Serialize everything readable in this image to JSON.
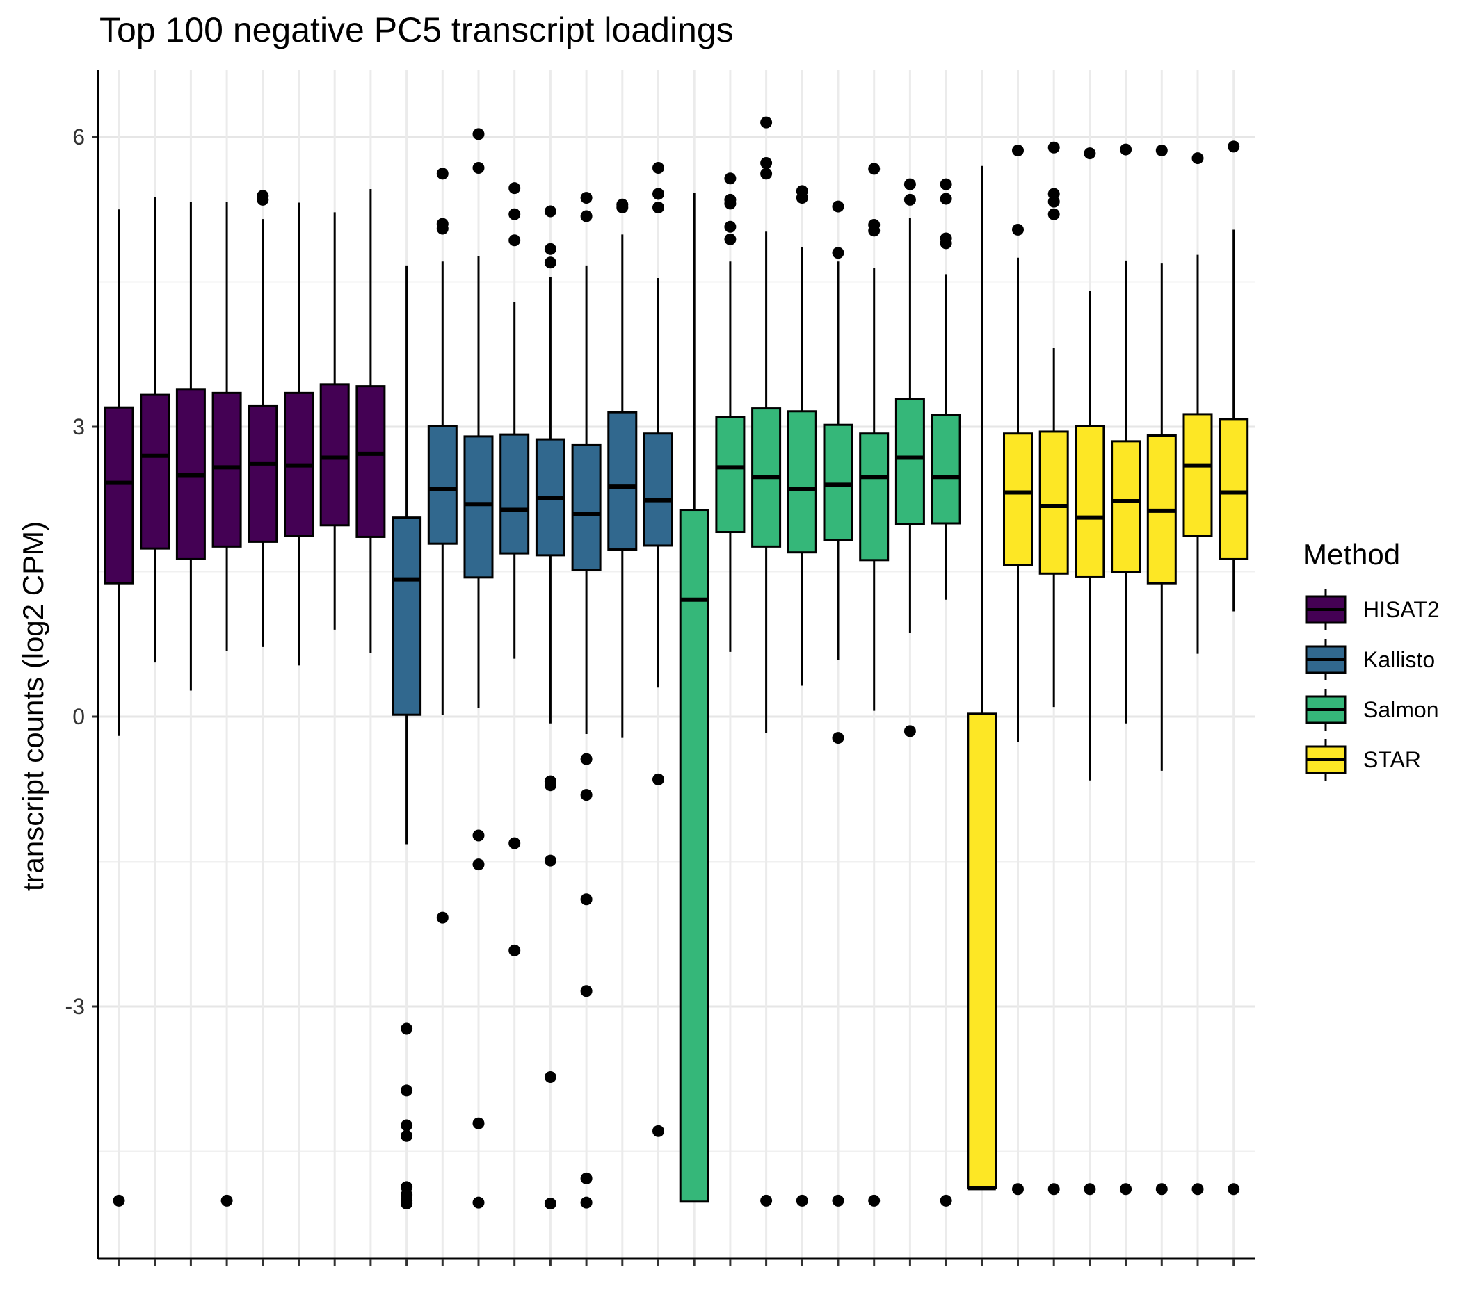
{
  "chart_data": {
    "type": "boxplot",
    "title": "Top 100 negative PC5 transcript loadings",
    "xlabel": "",
    "ylabel": "transcript counts (log2 CPM)",
    "ylim": [
      -5.6,
      6.8
    ],
    "yticks": [
      -3,
      0,
      3,
      6
    ],
    "grid": true,
    "legend": {
      "title": "Method",
      "position": "right",
      "entries": [
        {
          "name": "HISAT2",
          "color": "#440154"
        },
        {
          "name": "Kallisto",
          "color": "#31688E"
        },
        {
          "name": "Salmon",
          "color": "#35B779"
        },
        {
          "name": "STAR",
          "color": "#FDE725"
        }
      ]
    },
    "boxes": [
      {
        "method": "HISAT2",
        "q1": 1.38,
        "median": 2.42,
        "q3": 3.2,
        "whisker_low": -0.2,
        "whisker_high": 5.25,
        "outliers": [
          -5.01
        ]
      },
      {
        "method": "HISAT2",
        "q1": 1.74,
        "median": 2.7,
        "q3": 3.33,
        "whisker_low": 0.56,
        "whisker_high": 5.38,
        "outliers": []
      },
      {
        "method": "HISAT2",
        "q1": 1.63,
        "median": 2.5,
        "q3": 3.39,
        "whisker_low": 0.27,
        "whisker_high": 5.33,
        "outliers": []
      },
      {
        "method": "HISAT2",
        "q1": 1.76,
        "median": 2.58,
        "q3": 3.35,
        "whisker_low": 0.68,
        "whisker_high": 5.33,
        "outliers": [
          -5.01
        ]
      },
      {
        "method": "HISAT2",
        "q1": 1.81,
        "median": 2.62,
        "q3": 3.22,
        "whisker_low": 0.72,
        "whisker_high": 5.15,
        "outliers": [
          5.35,
          5.39
        ]
      },
      {
        "method": "HISAT2",
        "q1": 1.87,
        "median": 2.6,
        "q3": 3.35,
        "whisker_low": 0.53,
        "whisker_high": 5.32,
        "outliers": []
      },
      {
        "method": "HISAT2",
        "q1": 1.98,
        "median": 2.68,
        "q3": 3.44,
        "whisker_low": 0.9,
        "whisker_high": 5.22,
        "outliers": []
      },
      {
        "method": "HISAT2",
        "q1": 1.86,
        "median": 2.72,
        "q3": 3.42,
        "whisker_low": 0.66,
        "whisker_high": 5.46,
        "outliers": []
      },
      {
        "method": "Kallisto",
        "q1": 0.02,
        "median": 1.42,
        "q3": 2.06,
        "whisker_low": -1.32,
        "whisker_high": 4.67,
        "outliers": [
          -3.23,
          -3.87,
          -4.23,
          -4.34,
          -4.87,
          -4.95,
          -5.01,
          -5.04
        ]
      },
      {
        "method": "Kallisto",
        "q1": 1.79,
        "median": 2.36,
        "q3": 3.01,
        "whisker_low": 0.02,
        "whisker_high": 4.71,
        "outliers": [
          5.62,
          5.1,
          5.05,
          -2.08
        ]
      },
      {
        "method": "Kallisto",
        "q1": 1.44,
        "median": 2.2,
        "q3": 2.9,
        "whisker_low": 0.09,
        "whisker_high": 4.77,
        "outliers": [
          6.03,
          5.68,
          -1.23,
          -1.53,
          -4.21,
          -5.03
        ]
      },
      {
        "method": "Kallisto",
        "q1": 1.69,
        "median": 2.14,
        "q3": 2.92,
        "whisker_low": 0.6,
        "whisker_high": 4.29,
        "outliers": [
          5.47,
          5.2,
          4.93,
          -1.31,
          -2.42
        ]
      },
      {
        "method": "Kallisto",
        "q1": 1.67,
        "median": 2.26,
        "q3": 2.87,
        "whisker_low": -0.07,
        "whisker_high": 4.55,
        "outliers": [
          5.23,
          4.84,
          4.7,
          -0.67,
          -0.71,
          -1.49,
          -3.73,
          -5.04
        ]
      },
      {
        "method": "Kallisto",
        "q1": 1.52,
        "median": 2.1,
        "q3": 2.81,
        "whisker_low": -0.18,
        "whisker_high": 4.67,
        "outliers": [
          5.37,
          5.18,
          -0.44,
          -0.81,
          -1.89,
          -2.84,
          -4.78,
          -5.03
        ]
      },
      {
        "method": "Kallisto",
        "q1": 1.73,
        "median": 2.38,
        "q3": 3.15,
        "whisker_low": -0.22,
        "whisker_high": 4.99,
        "outliers": [
          5.3,
          5.27
        ]
      },
      {
        "method": "Kallisto",
        "q1": 1.77,
        "median": 2.24,
        "q3": 2.93,
        "whisker_low": 0.3,
        "whisker_high": 4.54,
        "outliers": [
          5.68,
          5.41,
          5.27,
          -0.65,
          -4.29
        ]
      },
      {
        "method": "Salmon",
        "q1": -5.02,
        "median": 1.21,
        "q3": 2.14,
        "whisker_low": -5.02,
        "whisker_high": 5.42,
        "outliers": []
      },
      {
        "method": "Salmon",
        "q1": 1.91,
        "median": 2.58,
        "q3": 3.1,
        "whisker_low": 0.67,
        "whisker_high": 4.71,
        "outliers": [
          5.57,
          5.35,
          5.31,
          5.07,
          4.94
        ]
      },
      {
        "method": "Salmon",
        "q1": 1.76,
        "median": 2.48,
        "q3": 3.19,
        "whisker_low": -0.17,
        "whisker_high": 5.02,
        "outliers": [
          6.15,
          5.73,
          5.62,
          -5.01
        ]
      },
      {
        "method": "Salmon",
        "q1": 1.7,
        "median": 2.36,
        "q3": 3.16,
        "whisker_low": 0.32,
        "whisker_high": 4.86,
        "outliers": [
          5.44,
          5.37,
          -5.01
        ]
      },
      {
        "method": "Salmon",
        "q1": 1.83,
        "median": 2.4,
        "q3": 3.02,
        "whisker_low": 0.59,
        "whisker_high": 4.71,
        "outliers": [
          5.28,
          4.8,
          -0.22,
          -5.01
        ]
      },
      {
        "method": "Salmon",
        "q1": 1.62,
        "median": 2.48,
        "q3": 2.93,
        "whisker_low": 0.06,
        "whisker_high": 4.64,
        "outliers": [
          5.67,
          5.09,
          5.03,
          -5.01
        ]
      },
      {
        "method": "Salmon",
        "q1": 1.99,
        "median": 2.68,
        "q3": 3.29,
        "whisker_low": 0.87,
        "whisker_high": 5.16,
        "outliers": [
          5.51,
          5.35,
          -0.15
        ]
      },
      {
        "method": "Salmon",
        "q1": 2.0,
        "median": 2.48,
        "q3": 3.12,
        "whisker_low": 1.21,
        "whisker_high": 4.58,
        "outliers": [
          5.51,
          5.36,
          4.95,
          4.9,
          -5.01
        ]
      },
      {
        "method": "STAR",
        "q1": -4.88,
        "median": -4.88,
        "q3": 0.03,
        "whisker_low": -4.88,
        "whisker_high": 5.7,
        "outliers": []
      },
      {
        "method": "STAR",
        "q1": 1.57,
        "median": 2.32,
        "q3": 2.93,
        "whisker_low": -0.26,
        "whisker_high": 4.75,
        "outliers": [
          5.86,
          5.04,
          -4.89
        ]
      },
      {
        "method": "STAR",
        "q1": 1.48,
        "median": 2.18,
        "q3": 2.95,
        "whisker_low": 0.1,
        "whisker_high": 3.82,
        "outliers": [
          5.89,
          5.41,
          5.33,
          5.2,
          -4.89
        ]
      },
      {
        "method": "STAR",
        "q1": 1.45,
        "median": 2.06,
        "q3": 3.01,
        "whisker_low": -0.66,
        "whisker_high": 4.41,
        "outliers": [
          5.83,
          -4.89
        ]
      },
      {
        "method": "STAR",
        "q1": 1.5,
        "median": 2.23,
        "q3": 2.85,
        "whisker_low": -0.07,
        "whisker_high": 4.72,
        "outliers": [
          5.87,
          -4.89
        ]
      },
      {
        "method": "STAR",
        "q1": 1.38,
        "median": 2.13,
        "q3": 2.91,
        "whisker_low": -0.56,
        "whisker_high": 4.69,
        "outliers": [
          5.86,
          -4.89
        ]
      },
      {
        "method": "STAR",
        "q1": 1.87,
        "median": 2.6,
        "q3": 3.13,
        "whisker_low": 0.65,
        "whisker_high": 4.78,
        "outliers": [
          5.78,
          -4.89
        ]
      },
      {
        "method": "STAR",
        "q1": 1.63,
        "median": 2.32,
        "q3": 3.08,
        "whisker_low": 1.09,
        "whisker_high": 5.04,
        "outliers": [
          5.9,
          -4.89
        ]
      }
    ]
  }
}
